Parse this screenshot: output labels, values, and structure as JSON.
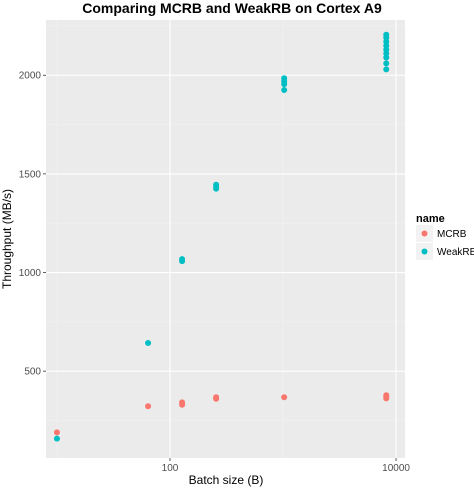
{
  "chart_data": {
    "type": "scatter",
    "title": "Comparing MCRB and WeakRB on Cortex A9",
    "xlabel": "Batch size (B)",
    "ylabel": "Throughput (MB/s)",
    "x_scale": "log10",
    "xlim": [
      8,
      12000
    ],
    "ylim": [
      60,
      2280
    ],
    "x_ticks": [
      100,
      10000
    ],
    "x_tick_labels": [
      "100",
      "10000"
    ],
    "y_ticks": [
      500,
      1000,
      1500,
      2000
    ],
    "y_tick_labels": [
      "500",
      "1000",
      "1500",
      "2000"
    ],
    "grid": true,
    "background": "#ebebeb",
    "legend": {
      "title": "name",
      "position": "right"
    },
    "series": [
      {
        "name": "MCRB",
        "color": "#f8766d",
        "points": [
          {
            "x": 10,
            "y": 190
          },
          {
            "x": 64,
            "y": 322
          },
          {
            "x": 128,
            "y": 330
          },
          {
            "x": 128,
            "y": 342
          },
          {
            "x": 256,
            "y": 360
          },
          {
            "x": 256,
            "y": 368
          },
          {
            "x": 1024,
            "y": 368
          },
          {
            "x": 8192,
            "y": 362
          },
          {
            "x": 8192,
            "y": 370
          },
          {
            "x": 8192,
            "y": 378
          }
        ]
      },
      {
        "name": "WeakRB",
        "color": "#00bfc4",
        "points": [
          {
            "x": 10,
            "y": 158
          },
          {
            "x": 64,
            "y": 643
          },
          {
            "x": 128,
            "y": 1058
          },
          {
            "x": 128,
            "y": 1068
          },
          {
            "x": 256,
            "y": 1425
          },
          {
            "x": 256,
            "y": 1435
          },
          {
            "x": 256,
            "y": 1445
          },
          {
            "x": 1024,
            "y": 1925
          },
          {
            "x": 1024,
            "y": 1955
          },
          {
            "x": 1024,
            "y": 1970
          },
          {
            "x": 1024,
            "y": 1985
          },
          {
            "x": 8192,
            "y": 2030
          },
          {
            "x": 8192,
            "y": 2060
          },
          {
            "x": 8192,
            "y": 2090
          },
          {
            "x": 8192,
            "y": 2110
          },
          {
            "x": 8192,
            "y": 2130
          },
          {
            "x": 8192,
            "y": 2150
          },
          {
            "x": 8192,
            "y": 2170
          },
          {
            "x": 8192,
            "y": 2190
          },
          {
            "x": 8192,
            "y": 2205
          }
        ]
      }
    ]
  }
}
